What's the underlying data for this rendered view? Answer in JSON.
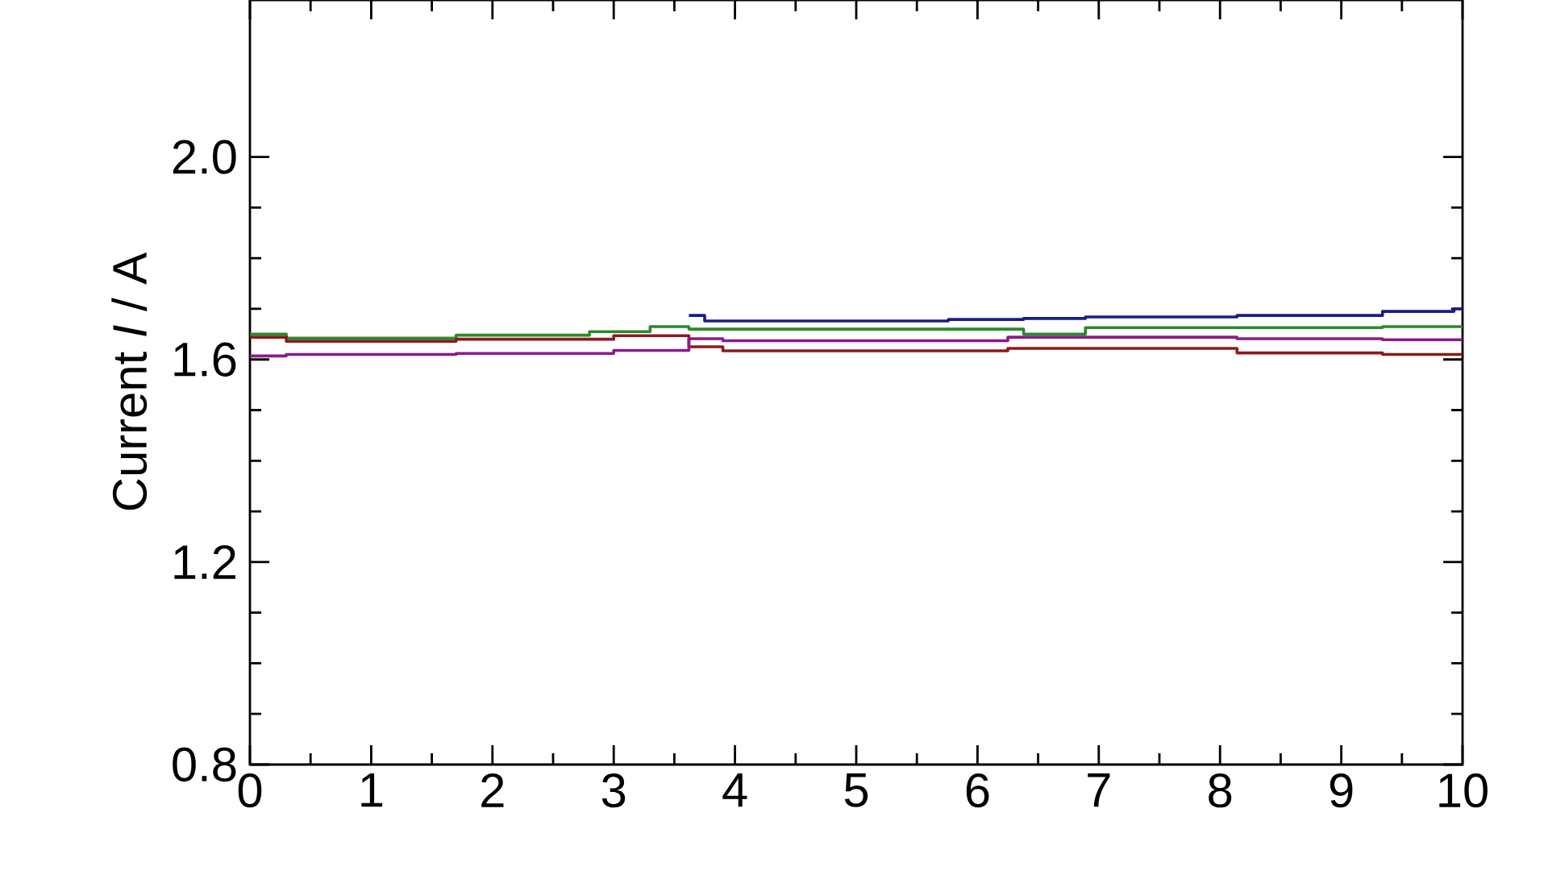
{
  "chart_data": {
    "type": "step",
    "ylabel": "Current *I* / A",
    "xlim": [
      0,
      10
    ],
    "xticks": [
      0,
      1,
      2,
      3,
      4,
      5,
      6,
      7,
      8,
      9,
      10
    ],
    "ylim": [
      0.8,
      2.31
    ],
    "yticks": [
      {
        "value": 0.8,
        "label": "0.8"
      },
      {
        "value": 1.2,
        "label": "1.2"
      },
      {
        "value": 1.6,
        "label": "1.6"
      },
      {
        "value": 2.0,
        "label": "2.0"
      }
    ],
    "grid": false,
    "marker": "none",
    "line_style": "solid",
    "series": [
      {
        "color": "#1c1c86",
        "x": [
          3.62,
          3.75,
          5.76,
          6.38,
          6.89,
          8.14,
          9.34,
          9.93,
          10
        ],
        "values": [
          1.687,
          1.676,
          1.679,
          1.681,
          1.684,
          1.687,
          1.695,
          1.7,
          1.7
        ]
      },
      {
        "color": "#2a8a2a",
        "x": [
          0,
          0.3,
          1.7,
          2.8,
          3.3,
          3.62,
          6.38,
          6.89,
          9.34,
          10
        ],
        "values": [
          1.65,
          1.642,
          1.648,
          1.655,
          1.665,
          1.66,
          1.65,
          1.663,
          1.665,
          1.665
        ]
      },
      {
        "color": "#8b1a1a",
        "x": [
          0,
          0.3,
          1.7,
          3.0,
          3.62,
          3.9,
          6.25,
          8.14,
          9.34,
          10
        ],
        "values": [
          1.644,
          1.636,
          1.64,
          1.647,
          1.625,
          1.617,
          1.622,
          1.613,
          1.61,
          1.61
        ]
      },
      {
        "color": "#8b1a8b",
        "x": [
          0,
          0.3,
          1.7,
          3.0,
          3.62,
          3.9,
          6.25,
          8.14,
          9.34,
          10
        ],
        "values": [
          1.607,
          1.61,
          1.612,
          1.618,
          1.641,
          1.637,
          1.644,
          1.641,
          1.639,
          1.639
        ]
      }
    ]
  }
}
